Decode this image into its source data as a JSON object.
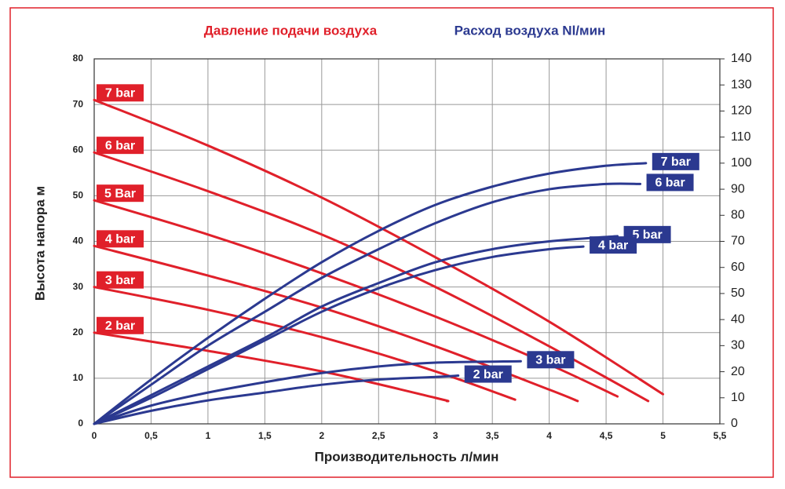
{
  "chart_data": {
    "type": "line",
    "legend_titles": [
      {
        "text": "Давление подачи воздуха",
        "color": "#e0202a"
      },
      {
        "text": "Расход воздуха Nl/мин",
        "color": "#2b3990"
      }
    ],
    "xlabel": "Производительность л/мин",
    "ylabel": "Высота напора м",
    "xlim": [
      0,
      5.5
    ],
    "xticks": [
      0,
      {
        "value": 0.5,
        "label": "0,5"
      },
      1,
      {
        "value": 1.5,
        "label": "1,5"
      },
      2,
      {
        "value": 2.5,
        "label": "2,5"
      },
      3,
      {
        "value": 3.5,
        "label": "3,5"
      },
      4,
      {
        "value": 4.5,
        "label": "4,5"
      },
      5,
      {
        "value": 5.5,
        "label": "5,5"
      }
    ],
    "ylim": [
      0,
      80
    ],
    "yticks": [
      0,
      10,
      20,
      30,
      40,
      50,
      60,
      70,
      80
    ],
    "y2lim": [
      0,
      140
    ],
    "y2ticks": [
      0,
      10,
      20,
      30,
      40,
      50,
      60,
      70,
      80,
      90,
      100,
      110,
      120,
      130,
      140
    ],
    "grid": true,
    "series": [
      {
        "name": "7 bar",
        "color": "#e0202a",
        "x": [
          0,
          1,
          2,
          3,
          4,
          5
        ],
        "values": [
          71,
          61,
          49.6,
          36.5,
          22.4,
          6.5
        ]
      },
      {
        "name": "6 bar",
        "color": "#e0202a",
        "x": [
          0,
          1,
          2,
          3,
          4,
          4.87
        ],
        "values": [
          59.5,
          51,
          41.5,
          30,
          17,
          5
        ]
      },
      {
        "name": "5 Bar",
        "color": "#e0202a",
        "x": [
          0,
          1,
          2,
          3,
          4,
          4.6
        ],
        "values": [
          49,
          41.5,
          33,
          23.5,
          13,
          6
        ]
      },
      {
        "name": "4 bar",
        "color": "#e0202a",
        "x": [
          0,
          1,
          2,
          3,
          4,
          4.25
        ],
        "values": [
          39,
          32.5,
          25.5,
          17,
          7.5,
          5
        ]
      },
      {
        "name": "3 bar",
        "color": "#e0202a",
        "x": [
          0,
          1,
          2,
          3,
          3.7
        ],
        "values": [
          30,
          25,
          19,
          11.5,
          5.3
        ]
      },
      {
        "name": "2 bar",
        "color": "#e0202a",
        "x": [
          0,
          1,
          2,
          3,
          3.1
        ],
        "values": [
          20,
          16,
          11.5,
          5.7,
          5
        ]
      },
      {
        "name": "7 bar",
        "color": "#2b3990",
        "axis": "y2",
        "x": [
          0,
          0.5,
          1,
          1.5,
          2,
          2.5,
          3,
          3.5,
          4,
          4.5,
          4.85
        ],
        "values": [
          0,
          17,
          33,
          48,
          62,
          74,
          84,
          91,
          96,
          99,
          100
        ]
      },
      {
        "name": "6 bar",
        "color": "#2b3990",
        "axis": "y2",
        "x": [
          0,
          0.5,
          1,
          1.5,
          2,
          2.5,
          3,
          3.5,
          4,
          4.5,
          4.8
        ],
        "values": [
          0,
          15,
          30,
          43,
          56,
          67,
          77,
          85,
          90,
          92,
          92
        ]
      },
      {
        "name": "5 bar",
        "color": "#2b3990",
        "axis": "y2",
        "x": [
          0,
          0.5,
          1,
          1.5,
          2,
          2.5,
          3,
          3.5,
          4,
          4.6
        ],
        "values": [
          0,
          11,
          22,
          33,
          45,
          54,
          62,
          67,
          70,
          72
        ]
      },
      {
        "name": "4 bar",
        "color": "#2b3990",
        "axis": "y2",
        "x": [
          0,
          0.5,
          1,
          1.5,
          2,
          2.5,
          3,
          3.5,
          4,
          4.3
        ],
        "values": [
          0,
          10,
          21,
          32,
          43,
          52,
          59,
          64,
          67,
          68
        ]
      },
      {
        "name": "3 bar",
        "color": "#2b3990",
        "axis": "y2",
        "x": [
          0,
          0.5,
          1,
          1.5,
          2,
          2.5,
          3,
          3.75
        ],
        "values": [
          0,
          7,
          12,
          16,
          19.5,
          22,
          23.5,
          24
        ]
      },
      {
        "name": "2 bar",
        "color": "#2b3990",
        "axis": "y2",
        "x": [
          0,
          0.5,
          1,
          1.5,
          2,
          2.5,
          3,
          3.2
        ],
        "values": [
          0,
          5,
          9,
          12,
          15,
          17,
          18,
          18.5
        ]
      }
    ]
  }
}
